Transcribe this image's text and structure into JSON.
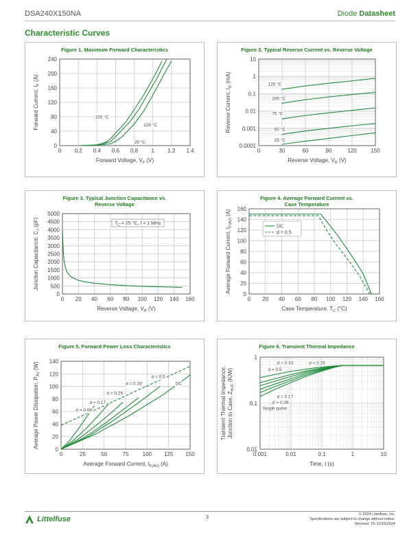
{
  "header": {
    "part_number": "DSA240X150NA",
    "doc_type_prefix": "Diode ",
    "doc_type_bold": "Datasheet"
  },
  "section_title": "Characteristic Curves",
  "colors": {
    "accent": "#2e8b2e",
    "curve": "#1f8a3a",
    "grid": "#c8c8c8"
  },
  "chart_data": [
    {
      "id": "fig1",
      "type": "line",
      "title": "Figure 1. Maximum Forward Characteristics",
      "xlabel": "Forward Voltage, V",
      "xlabel_sub": "F",
      "xlabel_suffix": " (V)",
      "ylabel": "Forward Current, I",
      "ylabel_sub": "F",
      "ylabel_suffix": " (A)",
      "xlim": [
        0,
        1.4
      ],
      "ylim": [
        0,
        240
      ],
      "xscale": "linear",
      "yscale": "linear",
      "xticks": [
        0,
        0.2,
        0.4,
        0.6,
        0.8,
        1,
        1.2,
        1.4
      ],
      "xtick_labels": [
        "0",
        "0.2",
        "0.4",
        "0.6",
        "0.8",
        "1",
        "1.2",
        "1.4"
      ],
      "yticks": [
        0,
        40,
        80,
        120,
        160,
        200,
        240
      ],
      "ytick_labels": [
        "0",
        "40",
        "80",
        "120",
        "160",
        "200",
        "240"
      ],
      "grid": true,
      "series": [
        {
          "name": "150 °C",
          "x": [
            0.2,
            0.4,
            0.5,
            0.55,
            0.6,
            0.7,
            0.8,
            0.9,
            1.0,
            1.1
          ],
          "y": [
            0,
            2,
            10,
            20,
            35,
            62,
            100,
            140,
            185,
            235
          ]
        },
        {
          "name": "125 °C",
          "x": [
            0.25,
            0.45,
            0.55,
            0.6,
            0.65,
            0.75,
            0.85,
            0.95,
            1.05,
            1.15
          ],
          "y": [
            0,
            3,
            12,
            25,
            38,
            65,
            100,
            145,
            190,
            240
          ]
        },
        {
          "name": "25 °C",
          "x": [
            0.35,
            0.55,
            0.62,
            0.67,
            0.72,
            0.8,
            0.9,
            1.0,
            1.1,
            1.2
          ],
          "y": [
            0,
            5,
            15,
            25,
            38,
            60,
            95,
            140,
            188,
            235
          ]
        }
      ],
      "annotations": [
        {
          "text": "150 °C",
          "x": 0.38,
          "y": 75
        },
        {
          "text": "125 °C",
          "x": 0.9,
          "y": 53
        },
        {
          "text": "25 °C",
          "x": 0.8,
          "y": 6
        }
      ]
    },
    {
      "id": "fig2",
      "type": "line",
      "title": "Figure 2. Typical Reverse Current vs. Reverse Voltage",
      "xlabel": "Reverse Voltage, V",
      "xlabel_sub": "R",
      "xlabel_suffix": " (V)",
      "ylabel": "Reverse Current, I",
      "ylabel_sub": "R",
      "ylabel_suffix": " (mA)",
      "xlim": [
        0,
        150
      ],
      "ylim": [
        0.0001,
        10
      ],
      "xscale": "linear",
      "yscale": "log",
      "xticks": [
        0,
        30,
        60,
        90,
        120,
        150
      ],
      "xtick_labels": [
        "0",
        "30",
        "60",
        "90",
        "120",
        "150"
      ],
      "yticks": [
        0.0001,
        0.001,
        0.01,
        0.1,
        1,
        10
      ],
      "ytick_labels": [
        "0.0001",
        "0.001",
        "0.01",
        "0.1",
        "1",
        "10"
      ],
      "grid": true,
      "series": [
        {
          "name": "125 °C",
          "x": [
            30,
            60,
            90,
            120,
            150
          ],
          "y": [
            0.18,
            0.28,
            0.4,
            0.55,
            0.78
          ]
        },
        {
          "name": "100 °C",
          "x": [
            30,
            60,
            90,
            120,
            150
          ],
          "y": [
            0.028,
            0.045,
            0.065,
            0.09,
            0.12
          ]
        },
        {
          "name": "75 °C",
          "x": [
            30,
            60,
            90,
            120,
            150
          ],
          "y": [
            0.0035,
            0.0055,
            0.0078,
            0.011,
            0.015
          ]
        },
        {
          "name": "50 °C",
          "x": [
            30,
            60,
            90,
            120,
            150
          ],
          "y": [
            0.00045,
            0.0007,
            0.001,
            0.0014,
            0.0019
          ]
        },
        {
          "name": "25 °C",
          "x": [
            30,
            60,
            90,
            120,
            150
          ],
          "y": [
            0.00012,
            0.00018,
            0.00026,
            0.00038,
            0.00055
          ]
        }
      ],
      "annotations": [
        {
          "text": "125 °C",
          "x": 12,
          "y": 0.3
        },
        {
          "text": "100 °C",
          "x": 17,
          "y": 0.043
        },
        {
          "text": "75 °C",
          "x": 17,
          "y": 0.0058
        },
        {
          "text": "50 °C",
          "x": 20,
          "y": 0.0007
        },
        {
          "text": "25 °C",
          "x": 20,
          "y": 0.00017
        }
      ]
    },
    {
      "id": "fig3",
      "type": "line",
      "title": "Figure 3. Typical Junction Capacitance vs.",
      "title2": "Reverse Voltage",
      "xlabel": "Reverse Voltage, V",
      "xlabel_sub": "R",
      "xlabel_suffix": " (V)",
      "ylabel": "Junction Capacitance, C",
      "ylabel_sub": "J",
      "ylabel_suffix": " (pF)",
      "xlim": [
        0,
        160
      ],
      "ylim": [
        0,
        5000
      ],
      "xscale": "linear",
      "yscale": "linear",
      "xticks": [
        0,
        20,
        40,
        60,
        80,
        100,
        120,
        140,
        160
      ],
      "xtick_labels": [
        "0",
        "20",
        "40",
        "60",
        "80",
        "100",
        "120",
        "140",
        "160"
      ],
      "yticks": [
        0,
        500,
        1000,
        1500,
        2000,
        2500,
        3000,
        3500,
        4000,
        4500,
        5000
      ],
      "ytick_labels": [
        "0",
        "500",
        "1000",
        "1500",
        "2000",
        "2500",
        "3000",
        "3500",
        "4000",
        "4500",
        "5000"
      ],
      "grid": true,
      "legend_box": "T = 25 °C, f = 1 MHz",
      "legend_box_prefix": "T",
      "legend_box_sub": "C",
      "legend_box_rest": " = 25 °C, f = 1 MHz",
      "series": [
        {
          "name": "",
          "x": [
            0,
            1,
            2,
            4,
            6,
            10,
            15,
            20,
            30,
            40,
            60,
            80,
            100,
            120,
            150
          ],
          "y": [
            4000,
            2700,
            2050,
            1600,
            1350,
            1100,
            950,
            850,
            740,
            670,
            580,
            520,
            480,
            450,
            410
          ]
        }
      ]
    },
    {
      "id": "fig4",
      "type": "line",
      "title": "Figure 4. Average Forward Current vs.",
      "title2": "Case Temperature",
      "xlabel": "Case Temperature, T",
      "xlabel_sub": "C",
      "xlabel_suffix": " (°C)",
      "ylabel": "Average Forward Current, I",
      "ylabel_sub": "F(AV)",
      "ylabel_suffix": " (A)",
      "xlim": [
        0,
        160
      ],
      "ylim": [
        0,
        160
      ],
      "xscale": "linear",
      "yscale": "linear",
      "xticks": [
        0,
        20,
        40,
        60,
        80,
        100,
        120,
        140,
        160
      ],
      "xtick_labels": [
        "0",
        "20",
        "40",
        "60",
        "80",
        "100",
        "120",
        "140",
        "160"
      ],
      "yticks": [
        0,
        20,
        40,
        60,
        80,
        100,
        120,
        140,
        160
      ],
      "ytick_labels": [
        "0",
        "20",
        "40",
        "60",
        "80",
        "100",
        "120",
        "140",
        "160"
      ],
      "grid": true,
      "legend": "top-left",
      "series": [
        {
          "name": "DC",
          "dash": false,
          "x": [
            0,
            88,
            100,
            110,
            120,
            130,
            140,
            150
          ],
          "y": [
            150,
            150,
            127,
            107,
            85,
            62,
            38,
            0
          ]
        },
        {
          "name": "d = 0.5",
          "dash": true,
          "x": [
            0,
            85,
            95,
            105,
            115,
            125,
            135,
            148
          ],
          "y": [
            147,
            147,
            120,
            97,
            77,
            57,
            35,
            0
          ]
        }
      ]
    },
    {
      "id": "fig5",
      "type": "line",
      "title": "Figure 5. Forward Power Loss Characteristics",
      "xlabel": "Average Forward Current, I",
      "xlabel_sub": "F(AV)",
      "xlabel_suffix": " (A)",
      "ylabel": "Average Power Dissipation, P",
      "ylabel_sub": "AV",
      "ylabel_suffix": " (W)",
      "xlim": [
        0,
        150
      ],
      "ylim": [
        0,
        140
      ],
      "xscale": "linear",
      "yscale": "linear",
      "xticks": [
        0,
        25,
        50,
        75,
        100,
        125,
        150
      ],
      "xtick_labels": [
        "0",
        "25",
        "50",
        "75",
        "100",
        "125",
        "150"
      ],
      "yticks": [
        0,
        20,
        40,
        60,
        80,
        100,
        120,
        140
      ],
      "ytick_labels": [
        "0",
        "20",
        "40",
        "60",
        "80",
        "100",
        "120",
        "140"
      ],
      "grid": true,
      "series": [
        {
          "name": "d = 0.08",
          "dash": false,
          "x": [
            0,
            10,
            20,
            30,
            40
          ],
          "y": [
            0,
            14,
            32,
            52,
            72
          ]
        },
        {
          "name": "d = 0.17",
          "dash": false,
          "x": [
            0,
            15,
            30,
            45,
            55
          ],
          "y": [
            0,
            15,
            34,
            56,
            72
          ]
        },
        {
          "name": "d = 0.25",
          "dash": false,
          "x": [
            0,
            20,
            40,
            60,
            72
          ],
          "y": [
            0,
            16,
            37,
            60,
            75
          ]
        },
        {
          "name": "d = 0.33",
          "dash": false,
          "x": [
            0,
            25,
            50,
            75,
            90
          ],
          "y": [
            0,
            17,
            40,
            66,
            82
          ]
        },
        {
          "name": "d = 0.5",
          "dash": false,
          "x": [
            0,
            30,
            60,
            90,
            115
          ],
          "y": [
            0,
            19,
            45,
            74,
            100
          ]
        },
        {
          "name": "DC",
          "dash": false,
          "x": [
            0,
            40,
            80,
            120,
            150
          ],
          "y": [
            0,
            24,
            54,
            88,
            118
          ]
        },
        {
          "name": "",
          "dash": true,
          "x": [
            0,
            150
          ],
          "y": [
            38,
            132
          ]
        }
      ],
      "annotations": [
        {
          "text": "d = 0.5",
          "x": 105,
          "y": 113
        },
        {
          "text": "DC",
          "x": 133,
          "y": 102
        },
        {
          "text": "d = 0.33",
          "x": 75,
          "y": 102
        },
        {
          "text": "d = 0.25",
          "x": 53,
          "y": 87
        },
        {
          "text": "d = 0.17",
          "x": 33,
          "y": 72
        },
        {
          "text": "d = 0.08",
          "x": 17,
          "y": 60
        }
      ]
    },
    {
      "id": "fig6",
      "type": "line",
      "title": "Figure 6. Transient Thermal Impedance",
      "xlabel": "Time, t (s)",
      "xlabel_sub": "",
      "xlabel_suffix": "",
      "ylabel": "Transient Thermal Impedance,",
      "ylabel2": "Junction to Case, Z",
      "ylabel_sub": "thJC",
      "ylabel_suffix": " (K/W)",
      "xlim": [
        0.001,
        10
      ],
      "ylim": [
        0.01,
        1
      ],
      "xscale": "log",
      "yscale": "log",
      "xticks": [
        0.001,
        0.01,
        0.1,
        1,
        10
      ],
      "xtick_labels": [
        "0.001",
        "0.01",
        "0.1",
        "1",
        "10"
      ],
      "yticks": [
        0.01,
        0.1,
        1
      ],
      "ytick_labels": [
        "0.01",
        "0.1",
        "1"
      ],
      "grid": true,
      "series": [
        {
          "name": "Single pulse",
          "x": [
            0.001,
            0.003,
            0.01,
            0.03,
            0.1,
            0.3,
            0.5,
            10
          ],
          "y": [
            0.14,
            0.2,
            0.28,
            0.38,
            0.5,
            0.62,
            0.66,
            0.66
          ]
        },
        {
          "name": "d = 0.08",
          "x": [
            0.001,
            0.003,
            0.01,
            0.03,
            0.1,
            0.3,
            0.5,
            10
          ],
          "y": [
            0.17,
            0.23,
            0.31,
            0.41,
            0.52,
            0.63,
            0.66,
            0.66
          ]
        },
        {
          "name": "d = 0.17",
          "x": [
            0.001,
            0.003,
            0.01,
            0.03,
            0.1,
            0.3,
            0.5,
            10
          ],
          "y": [
            0.2,
            0.26,
            0.34,
            0.44,
            0.54,
            0.63,
            0.66,
            0.66
          ]
        },
        {
          "name": "d = 0.25",
          "x": [
            0.001,
            0.003,
            0.01,
            0.03,
            0.1,
            0.3,
            0.5,
            10
          ],
          "y": [
            0.24,
            0.3,
            0.38,
            0.47,
            0.56,
            0.64,
            0.66,
            0.66
          ]
        },
        {
          "name": "d = 0.33",
          "x": [
            0.001,
            0.003,
            0.01,
            0.03,
            0.1,
            0.3,
            0.5,
            10
          ],
          "y": [
            0.28,
            0.34,
            0.42,
            0.5,
            0.58,
            0.64,
            0.66,
            0.66
          ]
        },
        {
          "name": "d = 0.5",
          "x": [
            0.001,
            0.003,
            0.01,
            0.03,
            0.1,
            0.3,
            0.5,
            10
          ],
          "y": [
            0.36,
            0.42,
            0.49,
            0.55,
            0.61,
            0.65,
            0.66,
            0.66
          ]
        }
      ],
      "annotations": [
        {
          "text": "d = 0.33",
          "x": 0.0035,
          "y": 0.7
        },
        {
          "text": "d = 0.25",
          "x": 0.038,
          "y": 0.7
        },
        {
          "text": "d = 0.5",
          "x": 0.0018,
          "y": 0.5
        },
        {
          "text": "d = 0.17",
          "x": 0.0035,
          "y": 0.13
        },
        {
          "text": "d = 0.08",
          "x": 0.0025,
          "y": 0.096
        },
        {
          "text": "Single pulse",
          "x": 0.0012,
          "y": 0.072
        }
      ]
    }
  ],
  "footer": {
    "brand": "Littelfuse",
    "page": "3",
    "copyright": "© 2024 Littelfuse, Inc.",
    "notice": "Specifications are subject to change without notice.",
    "revised": "Revised: TK.12/10/2024"
  }
}
